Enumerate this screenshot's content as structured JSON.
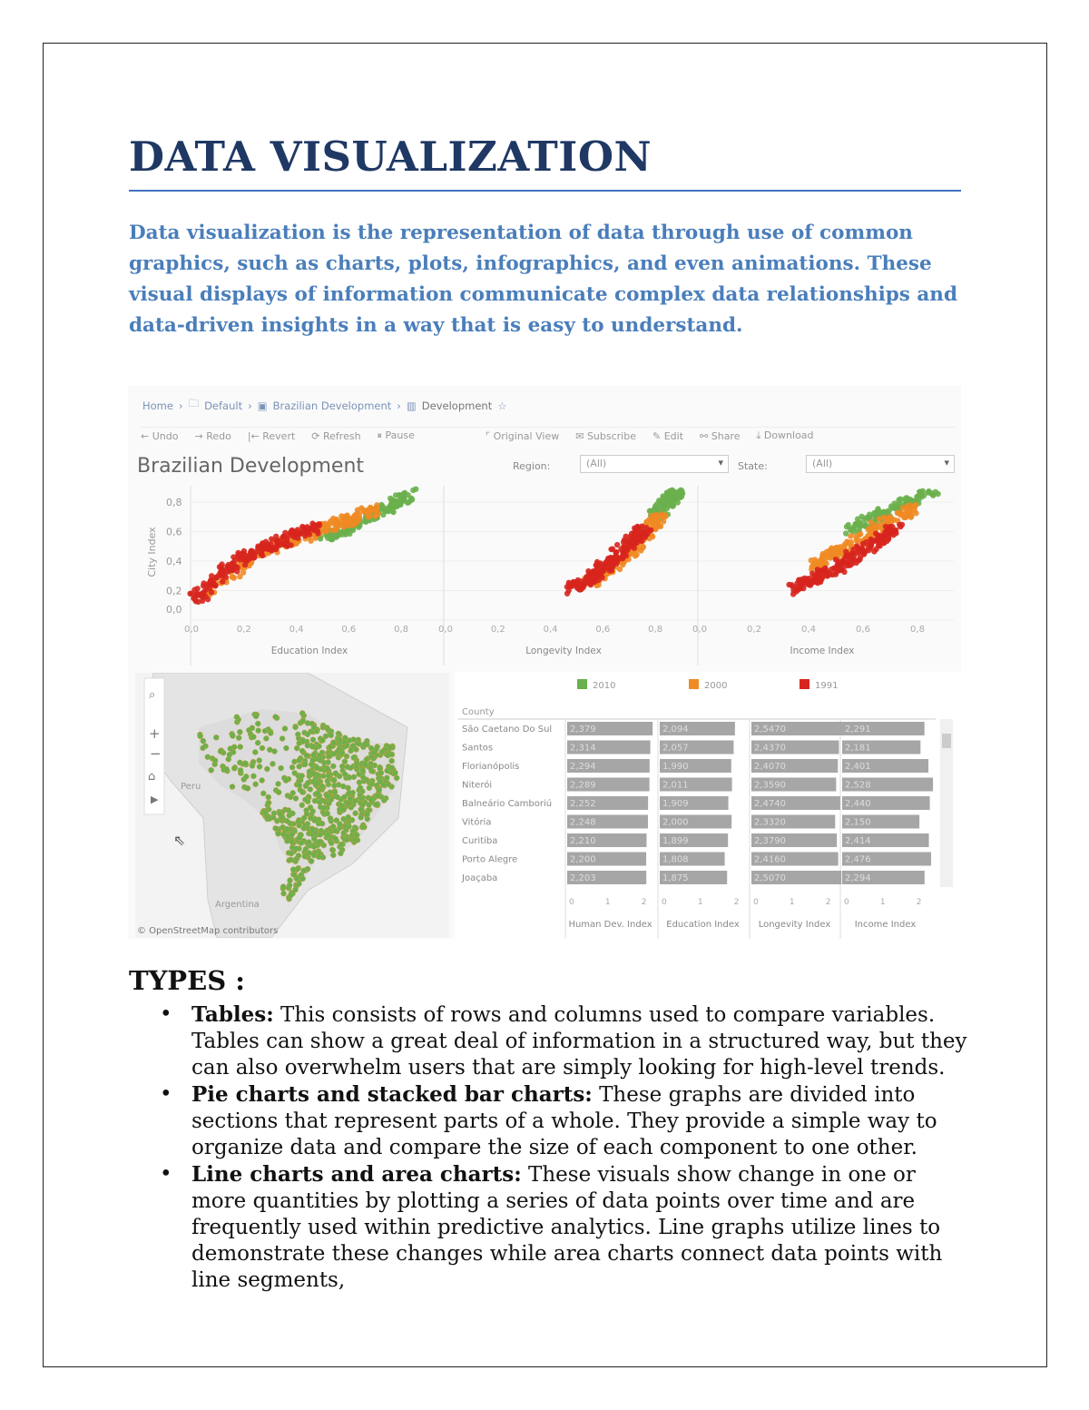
{
  "title": "DATA VISUALIZATION",
  "intro": "Data visualization is the representation of data through use of common graphics, such as charts, plots, infographics, and even animations. These visual displays of information communicate complex data relationships and data-driven insights in a way that is easy to understand.",
  "dashboard": {
    "breadcrumb": [
      "Home",
      "Default",
      "Brazilian Development",
      "Development"
    ],
    "toolbar": [
      "Undo",
      "Redo",
      "Revert",
      "Refresh",
      "Pause",
      "Original View",
      "Subscribe",
      "Edit",
      "Share",
      "Download"
    ],
    "title": "Brazilian Development",
    "filters": {
      "region_label": "Region:",
      "region_value": "(All)",
      "state_label": "State:",
      "state_value": "(All)"
    },
    "map_credit": "© OpenStreetMap contributors",
    "map_labels": [
      "Peru",
      "Argentina"
    ],
    "colors": {
      "2010": "#6ab04c",
      "2000": "#f08a24",
      "1991": "#d7261e"
    }
  },
  "chart_data": [
    {
      "type": "scatter",
      "ylabel": "City Index",
      "ylim": [
        0,
        0.9
      ],
      "yticks": [
        "0,0",
        "0,2",
        "0,4",
        "0,6",
        "0,8"
      ],
      "panels": [
        {
          "xlabel": "Education Index",
          "xticks": [
            "0,0",
            "0,2",
            "0,4",
            "0,6",
            "0,8"
          ],
          "xlim": [
            0,
            0.9
          ],
          "series": [
            {
              "name": "1991",
              "points": [
                [
                  0.02,
                  0.14
                ],
                [
                  0.1,
                  0.3
                ],
                [
                  0.2,
                  0.42
                ],
                [
                  0.3,
                  0.5
                ],
                [
                  0.4,
                  0.58
                ],
                [
                  0.5,
                  0.64
                ]
              ]
            },
            {
              "name": "2000",
              "points": [
                [
                  0.05,
                  0.16
                ],
                [
                  0.2,
                  0.4
                ],
                [
                  0.35,
                  0.52
                ],
                [
                  0.5,
                  0.62
                ],
                [
                  0.6,
                  0.68
                ],
                [
                  0.7,
                  0.75
                ]
              ]
            },
            {
              "name": "2010",
              "points": [
                [
                  0.5,
                  0.56
                ],
                [
                  0.6,
                  0.62
                ],
                [
                  0.7,
                  0.72
                ],
                [
                  0.78,
                  0.8
                ],
                [
                  0.84,
                  0.86
                ]
              ]
            }
          ]
        },
        {
          "xlabel": "Longevity Index",
          "xticks": [
            "0,0",
            "0,2",
            "0,4",
            "0,6",
            "0,8"
          ],
          "xlim": [
            0,
            0.9
          ],
          "series": [
            {
              "name": "1991",
              "points": [
                [
                  0.47,
                  0.2
                ],
                [
                  0.55,
                  0.28
                ],
                [
                  0.6,
                  0.36
                ],
                [
                  0.66,
                  0.45
                ],
                [
                  0.72,
                  0.55
                ],
                [
                  0.76,
                  0.62
                ]
              ]
            },
            {
              "name": "2000",
              "points": [
                [
                  0.55,
                  0.25
                ],
                [
                  0.65,
                  0.38
                ],
                [
                  0.72,
                  0.5
                ],
                [
                  0.78,
                  0.62
                ],
                [
                  0.82,
                  0.72
                ]
              ]
            },
            {
              "name": "2010",
              "points": [
                [
                  0.8,
                  0.7
                ],
                [
                  0.84,
                  0.78
                ],
                [
                  0.86,
                  0.84
                ],
                [
                  0.88,
                  0.86
                ]
              ]
            }
          ]
        },
        {
          "xlabel": "Income Index",
          "xticks": [
            "0,0",
            "0,2",
            "0,4",
            "0,6",
            "0,8"
          ],
          "xlim": [
            0,
            0.9
          ],
          "series": [
            {
              "name": "1991",
              "points": [
                [
                  0.35,
                  0.2
                ],
                [
                  0.42,
                  0.28
                ],
                [
                  0.5,
                  0.35
                ],
                [
                  0.58,
                  0.45
                ],
                [
                  0.66,
                  0.55
                ],
                [
                  0.72,
                  0.62
                ]
              ]
            },
            {
              "name": "2000",
              "points": [
                [
                  0.4,
                  0.35
                ],
                [
                  0.5,
                  0.45
                ],
                [
                  0.6,
                  0.56
                ],
                [
                  0.7,
                  0.68
                ],
                [
                  0.8,
                  0.78
                ]
              ]
            },
            {
              "name": "2010",
              "points": [
                [
                  0.55,
                  0.6
                ],
                [
                  0.65,
                  0.7
                ],
                [
                  0.75,
                  0.78
                ],
                [
                  0.85,
                  0.85
                ]
              ]
            }
          ]
        }
      ]
    },
    {
      "type": "bar",
      "legend": [
        "2010",
        "2000",
        "1991"
      ],
      "row_header": "County",
      "columns": [
        "Human Dev. Index",
        "Education Index",
        "Longevity Index",
        "Income Index"
      ],
      "xticks": [
        "0",
        "1",
        "2"
      ],
      "rows": [
        {
          "name": "São Caetano Do Sul",
          "values": [
            "2,379",
            "2,094",
            "2,5470",
            "2,291"
          ]
        },
        {
          "name": "Santos",
          "values": [
            "2,314",
            "2,057",
            "2,4370",
            "2,181"
          ]
        },
        {
          "name": "Florianópolis",
          "values": [
            "2,294",
            "1,990",
            "2,4070",
            "2,401"
          ]
        },
        {
          "name": "Niterói",
          "values": [
            "2,289",
            "2,011",
            "2,3590",
            "2,528"
          ]
        },
        {
          "name": "Balneário Camboriú",
          "values": [
            "2,252",
            "1,909",
            "2,4740",
            "2,440"
          ]
        },
        {
          "name": "Vitória",
          "values": [
            "2,248",
            "2,000",
            "2,3320",
            "2,150"
          ]
        },
        {
          "name": "Curitiba",
          "values": [
            "2,210",
            "1,899",
            "2,3790",
            "2,414"
          ]
        },
        {
          "name": "Porto Alegre",
          "values": [
            "2,200",
            "1,808",
            "2,4160",
            "2,476"
          ]
        },
        {
          "name": "Joaçaba",
          "values": [
            "2,203",
            "1,875",
            "2,5070",
            "2,294"
          ]
        }
      ]
    }
  ],
  "types": {
    "heading": "TYPES :",
    "items": [
      {
        "term": "Tables:",
        "text": " This consists of rows and columns used to compare variables. Tables can show a great deal of information in a structured way, but they can also overwhelm users that are simply looking for high-level trends."
      },
      {
        "term": "Pie charts and stacked bar charts:",
        "text": " These graphs are divided into sections that represent parts of a whole. They provide a simple way to organize data and compare the size of each component to one other."
      },
      {
        "term": "Line charts and area charts:",
        "text": " These visuals show change in one or more quantities by plotting a series of data points over time and are frequently used within predictive analytics. Line graphs utilize lines to demonstrate these changes while area charts connect data points with line segments,"
      }
    ]
  }
}
